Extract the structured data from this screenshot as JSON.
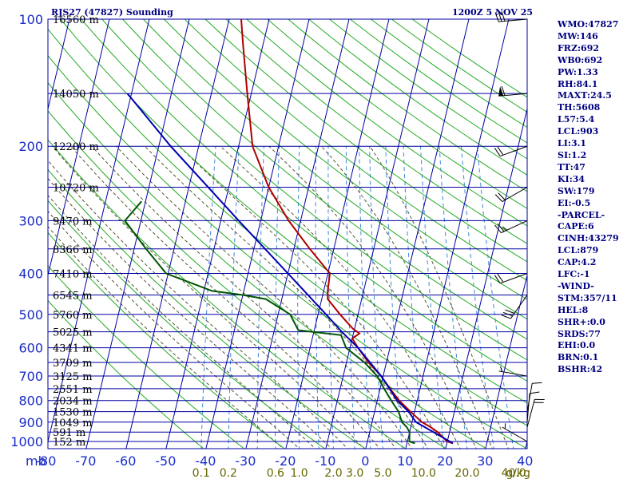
{
  "header": {
    "station": "RJS27 (47827) Sounding",
    "datetime": "1200Z  5 NOV 25"
  },
  "indices": [
    "WMO:47827",
    "MW:146",
    "FRZ:692",
    "WB0:692",
    "PW:1.33",
    "RH:84.1",
    "MAXT:24.5",
    "TH:5608",
    "L57:5.4",
    "LCL:903",
    "LI:3.1",
    "SI:1.2",
    "TT:47",
    "KI:34",
    "SW:179",
    "EI:-0.5",
    "-PARCEL-",
    "CAPE:6",
    "CINH:43279",
    "LCL:879",
    "CAP:4.2",
    "LFC:-1",
    "-WIND-",
    "STM:357/11",
    "HEL:8",
    "SHR+:0.0",
    "SRDS:77",
    "EHI:0.0",
    "BRN:0.1",
    "BSHR:42"
  ],
  "colors": {
    "grid": "#0000a0",
    "label": "#1a2cc8",
    "height_label": "#000000",
    "isotherm": "#0000a0",
    "dry_adiabat": "#22aa22",
    "moist_adiabat": "#555533",
    "mixing_ratio": "#3a8ad8",
    "temperature": "#b00000",
    "dewpoint": "#005500",
    "parcel": "#0000b0",
    "wind": "#000000",
    "mixing_label": "#666600"
  },
  "chart_data": {
    "type": "line",
    "xlabel": "",
    "ylabel": "mb",
    "xlim": [
      -80,
      40
    ],
    "ylim": [
      1000,
      100
    ],
    "grid": true,
    "pressure_ticks": [
      100,
      200,
      300,
      400,
      500,
      600,
      700,
      800,
      900,
      1000
    ],
    "temp_ticks": [
      -80,
      -70,
      -60,
      -50,
      -40,
      -30,
      -20,
      -10,
      0,
      10,
      20,
      30,
      40
    ],
    "temp_tick_labels": [
      "-80",
      "-70",
      "-60",
      "-50",
      "-40",
      "-30",
      "-20",
      "-10",
      "0",
      "10",
      "20",
      "30",
      "40"
    ],
    "axis_unit_label": "mb",
    "height_levels": [
      {
        "p": 100,
        "label": "16560 m"
      },
      {
        "p": 150,
        "label": "14050 m"
      },
      {
        "p": 200,
        "label": "12200 m"
      },
      {
        "p": 250,
        "label": "10720 m"
      },
      {
        "p": 300,
        "label": "9470 m"
      },
      {
        "p": 350,
        "label": "8366 m"
      },
      {
        "p": 400,
        "label": "7410 m"
      },
      {
        "p": 450,
        "label": "6545 m"
      },
      {
        "p": 500,
        "label": "5760 m"
      },
      {
        "p": 550,
        "label": "5025 m"
      },
      {
        "p": 600,
        "label": "4341 m"
      },
      {
        "p": 650,
        "label": "3709 m"
      },
      {
        "p": 700,
        "label": "3125 m"
      },
      {
        "p": 750,
        "label": "2551 m"
      },
      {
        "p": 800,
        "label": "2034 m"
      },
      {
        "p": 850,
        "label": "1530 m"
      },
      {
        "p": 900,
        "label": "1049 m"
      },
      {
        "p": 950,
        "label": "591 m"
      },
      {
        "p": 1000,
        "label": "152 m"
      }
    ],
    "mixing_ratio_labels": [
      {
        "g": 0.1,
        "label": "0.1"
      },
      {
        "g": 0.2,
        "label": "0.2"
      },
      {
        "g": 0.6,
        "label": "0.6"
      },
      {
        "g": 1.0,
        "label": "1.0"
      },
      {
        "g": 2.0,
        "label": "2.0"
      },
      {
        "g": 3.0,
        "label": "3.0"
      },
      {
        "g": 5.0,
        "label": "5.0"
      },
      {
        "g": 10.0,
        "label": "10.0"
      },
      {
        "g": 20.0,
        "label": "20.0"
      },
      {
        "g": 40.0,
        "label": "40.0"
      }
    ],
    "mixing_unit_label": "g/kg",
    "series": [
      {
        "key": "temperature",
        "points": [
          {
            "p": 1010,
            "t": 21.5
          },
          {
            "p": 1000,
            "t": 20.0
          },
          {
            "p": 950,
            "t": 17.0
          },
          {
            "p": 925,
            "t": 15.0
          },
          {
            "p": 900,
            "t": 12.5
          },
          {
            "p": 850,
            "t": 9.0
          },
          {
            "p": 800,
            "t": 5.5
          },
          {
            "p": 750,
            "t": 2.5
          },
          {
            "p": 700,
            "t": -0.5
          },
          {
            "p": 650,
            "t": -4.5
          },
          {
            "p": 600,
            "t": -8.0
          },
          {
            "p": 570,
            "t": -10.0
          },
          {
            "p": 555,
            "t": -8.5
          },
          {
            "p": 540,
            "t": -10.5
          },
          {
            "p": 500,
            "t": -14.5
          },
          {
            "p": 460,
            "t": -18.5
          },
          {
            "p": 440,
            "t": -19.0
          },
          {
            "p": 400,
            "t": -19.5
          },
          {
            "p": 350,
            "t": -26.0
          },
          {
            "p": 300,
            "t": -33.0
          },
          {
            "p": 250,
            "t": -40.0
          },
          {
            "p": 200,
            "t": -46.5
          },
          {
            "p": 150,
            "t": -51.0
          },
          {
            "p": 115,
            "t": -55.0
          },
          {
            "p": 100,
            "t": -57.0
          }
        ]
      },
      {
        "key": "dewpoint",
        "points": [
          {
            "p": 1010,
            "t": 12.0
          },
          {
            "p": 1000,
            "t": 10.5
          },
          {
            "p": 950,
            "t": 10.0
          },
          {
            "p": 925,
            "t": 9.0
          },
          {
            "p": 900,
            "t": 7.5
          },
          {
            "p": 850,
            "t": 6.0
          },
          {
            "p": 800,
            "t": 3.5
          },
          {
            "p": 750,
            "t": 1.0
          },
          {
            "p": 700,
            "t": -1.5
          },
          {
            "p": 650,
            "t": -5.5
          },
          {
            "p": 600,
            "t": -11.0
          },
          {
            "p": 560,
            "t": -13.0
          },
          {
            "p": 545,
            "t": -24.0
          },
          {
            "p": 500,
            "t": -27.0
          },
          {
            "p": 460,
            "t": -34.0
          },
          {
            "p": 450,
            "t": -40.0
          },
          {
            "p": 440,
            "t": -48.0
          },
          {
            "p": 400,
            "t": -60.5
          },
          {
            "p": 350,
            "t": -67.0
          },
          {
            "p": 300,
            "t": -74.0
          },
          {
            "p": 270,
            "t": -71.0
          }
        ]
      },
      {
        "key": "parcel",
        "points": [
          {
            "p": 1010,
            "t": 21.5
          },
          {
            "p": 900,
            "t": 11.0
          },
          {
            "p": 850,
            "t": 8.5
          },
          {
            "p": 800,
            "t": 5.0
          },
          {
            "p": 700,
            "t": -0.5
          },
          {
            "p": 600,
            "t": -8.0
          },
          {
            "p": 550,
            "t": -13.0
          },
          {
            "p": 500,
            "t": -18.0
          },
          {
            "p": 400,
            "t": -30.0
          },
          {
            "p": 300,
            "t": -45.5
          },
          {
            "p": 200,
            "t": -67.0
          },
          {
            "p": 150,
            "t": -81.0
          }
        ]
      }
    ],
    "winds": [
      {
        "p": 100,
        "dir": 265,
        "speed": 30
      },
      {
        "p": 150,
        "dir": 265,
        "speed": 60
      },
      {
        "p": 200,
        "dir": 250,
        "speed": 20
      },
      {
        "p": 250,
        "dir": 240,
        "speed": 20
      },
      {
        "p": 300,
        "dir": 245,
        "speed": 25
      },
      {
        "p": 400,
        "dir": 250,
        "speed": 20
      },
      {
        "p": 450,
        "dir": 215,
        "speed": 30
      },
      {
        "p": 700,
        "dir": 280,
        "speed": 5
      },
      {
        "p": 850,
        "dir": 10,
        "speed": 10
      },
      {
        "p": 900,
        "dir": 5,
        "speed": 10
      },
      {
        "p": 925,
        "dir": 15,
        "speed": 20
      },
      {
        "p": 1000,
        "dir": 300,
        "speed": 5
      }
    ]
  }
}
